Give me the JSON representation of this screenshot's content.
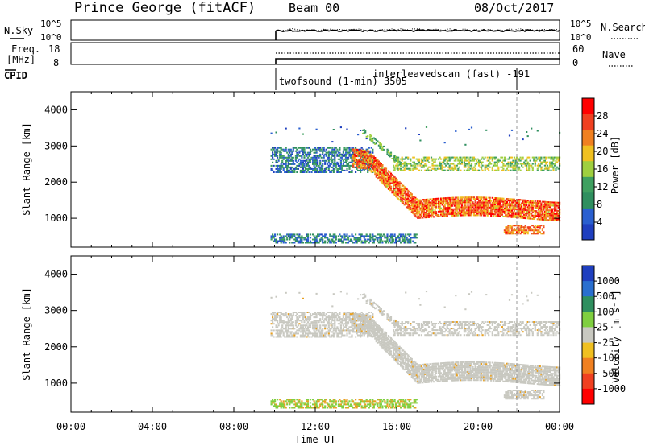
{
  "header": {
    "station": "Prince George (fitACF)",
    "beam": "Beam 00",
    "date": "08/Oct/2017"
  },
  "noise_panel": {
    "left_label": "N.Sky",
    "left_ticks": [
      "10^5",
      "10^0"
    ],
    "right_ticks": [
      "10^5",
      "10^0"
    ],
    "right_label": "N.Search"
  },
  "freq_panel": {
    "left_label_line1": "Freq.",
    "left_label_line2": "[MHz]",
    "left_ticks": [
      "18",
      "8"
    ],
    "right_ticks": [
      "60",
      "0"
    ],
    "right_label": "Nave"
  },
  "cpid_panel": {
    "label": "CPID",
    "programs": [
      {
        "name": "twofsound (1-min) 3505",
        "start_hour": 9.8
      },
      {
        "name": "interleavedscan (fast) -191",
        "start_hour": 21.8
      }
    ]
  },
  "colors": {
    "power": [
      "#1f3fbf",
      "#2a5fcf",
      "#2f8f5f",
      "#3fa060",
      "#9fcf3f",
      "#f0c020",
      "#f08020",
      "#f04020",
      "#ff0000"
    ],
    "velocity_neg": "#1f3fbf",
    "ground_scatter": "#c8c8c0"
  },
  "chart_data": [
    {
      "type": "heatmap",
      "title": "Power",
      "xlabel": "",
      "ylabel": "Slant Range [km]",
      "xlim": [
        0,
        24
      ],
      "ylim": [
        200,
        4500
      ],
      "x_tick_labels": [
        "00:00",
        "04:00",
        "08:00",
        "12:00",
        "16:00",
        "20:00",
        "00:00"
      ],
      "y_tick_labels": [
        "1000",
        "2000",
        "3000",
        "4000"
      ],
      "y_tick_values": [
        1000,
        2000,
        3000,
        4000
      ],
      "colorbar": {
        "label": "Power [dB]",
        "ticks": [
          "28",
          "24",
          "20",
          "16",
          "12",
          "8",
          "4"
        ]
      },
      "data_start_hour": 9.8,
      "scatter_bands": [
        {
          "name": "E-region",
          "x": [
            9.8,
            13.5
          ],
          "range": [
            300,
            550
          ],
          "power": "low"
        },
        {
          "name": "Ionospheric band upper",
          "x": [
            9.8,
            14
          ],
          "range": [
            2300,
            2900
          ],
          "power": "low"
        },
        {
          "name": "Ionospheric band descending",
          "x": [
            14,
            24
          ],
          "range": [
            1000,
            2700
          ],
          "power": "high"
        },
        {
          "name": "Ionospheric band flat",
          "x": [
            16,
            24
          ],
          "range": [
            2300,
            2700
          ],
          "power": "medium"
        }
      ]
    },
    {
      "type": "heatmap",
      "title": "Velocity",
      "xlabel": "Time UT",
      "ylabel": "Slant Range [km]",
      "xlim": [
        0,
        24
      ],
      "ylim": [
        200,
        4500
      ],
      "x_tick_labels": [
        "00:00",
        "04:00",
        "08:00",
        "12:00",
        "16:00",
        "20:00",
        "00:00"
      ],
      "y_tick_labels": [
        "1000",
        "2000",
        "3000",
        "4000"
      ],
      "y_tick_values": [
        1000,
        2000,
        3000,
        4000
      ],
      "colorbar": {
        "label": "Velocity [m s⁻¹]",
        "ticks": [
          "1000",
          "500",
          "100",
          "25",
          "-25",
          "-100",
          "-500",
          "-1000"
        ]
      },
      "data_start_hour": 9.8
    }
  ]
}
